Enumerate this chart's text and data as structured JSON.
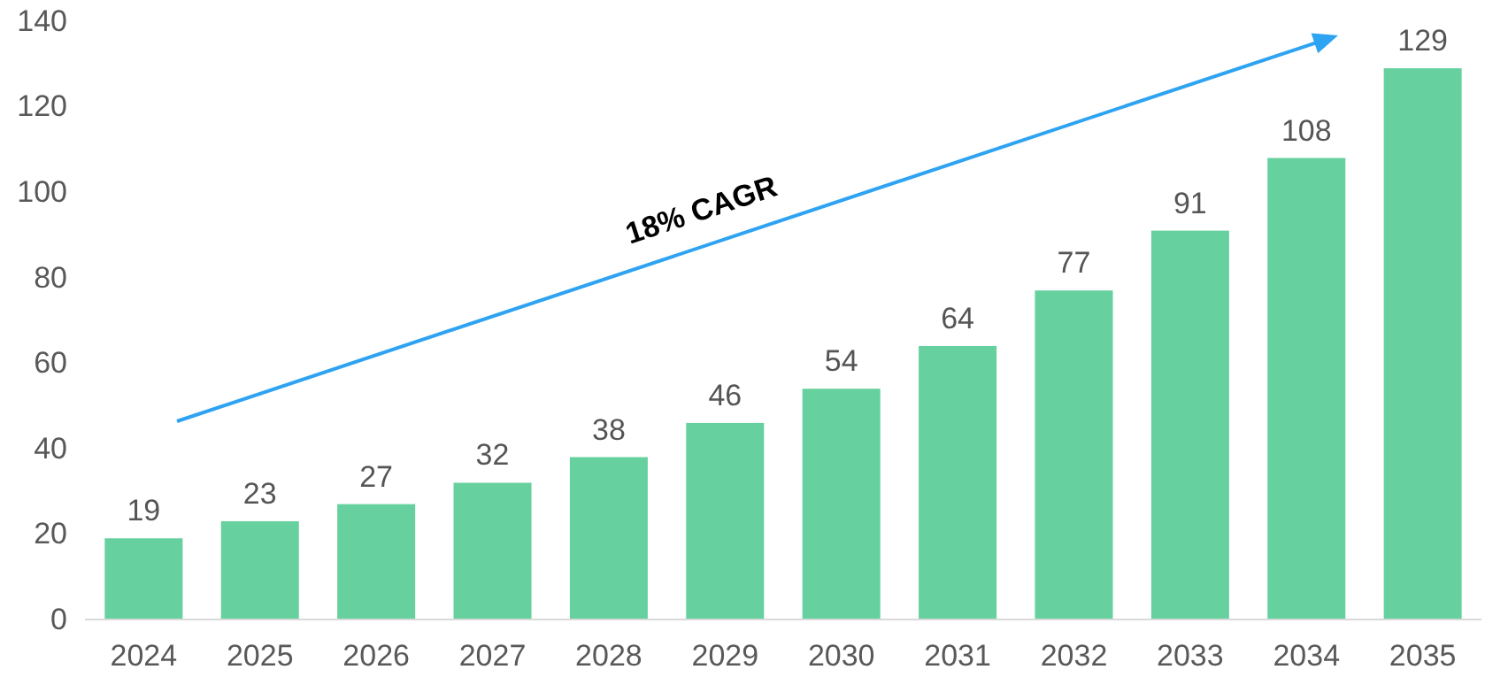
{
  "chart_data": {
    "type": "bar",
    "categories": [
      "2024",
      "2025",
      "2026",
      "2027",
      "2028",
      "2029",
      "2030",
      "2031",
      "2032",
      "2033",
      "2034",
      "2035"
    ],
    "values": [
      19,
      23,
      27,
      32,
      38,
      46,
      54,
      64,
      77,
      91,
      108,
      129
    ],
    "color": "#66d19e",
    "ylim": [
      0,
      140
    ],
    "yticks": [
      0,
      20,
      40,
      60,
      80,
      100,
      120,
      140
    ],
    "data_labels": true,
    "grid": false,
    "annotations": [
      "18% CAGR"
    ]
  }
}
